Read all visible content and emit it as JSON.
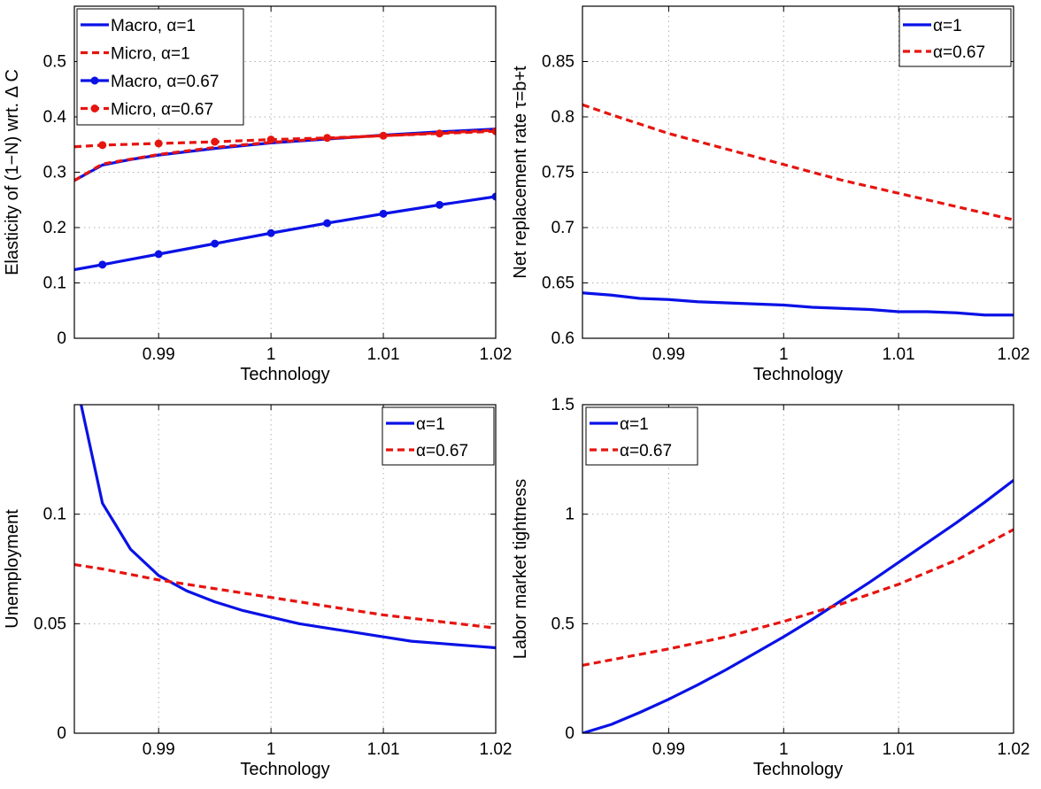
{
  "figure": {
    "colors": {
      "blue": "#0a12e6",
      "red": "#e6140f"
    }
  },
  "chart_data": [
    {
      "type": "line",
      "xlabel": "Technology",
      "ylabel": "Elasticity of (1−N) wrt. Δ C",
      "xlim": [
        0.9825,
        1.02
      ],
      "ylim": [
        0,
        0.6
      ],
      "xticks": [
        0.99,
        1,
        1.01,
        1.02
      ],
      "xtick_labels": [
        "0.99",
        "1",
        "1.01",
        "1.02"
      ],
      "yticks": [
        0,
        0.1,
        0.2,
        0.3,
        0.4,
        0.5
      ],
      "ytick_labels": [
        "0",
        "0.1",
        "0.2",
        "0.3",
        "0.4",
        "0.5"
      ],
      "grid": true,
      "legend_position": "top-left",
      "series": [
        {
          "name": "Macro, α=1",
          "color": "#0a12e6",
          "style": "solid",
          "marker": "none",
          "x": [
            0.9825,
            0.985,
            0.9875,
            0.99,
            0.995,
            1.0,
            1.005,
            1.01,
            1.015,
            1.02
          ],
          "y": [
            0.285,
            0.313,
            0.323,
            0.331,
            0.343,
            0.353,
            0.36,
            0.367,
            0.373,
            0.378
          ]
        },
        {
          "name": "Micro, α=1",
          "color": "#e6140f",
          "style": "dashed",
          "marker": "none",
          "x": [
            0.9825,
            0.985,
            0.99,
            0.995,
            1.0,
            1.005,
            1.01,
            1.015,
            1.02
          ],
          "y": [
            0.285,
            0.315,
            0.332,
            0.345,
            0.354,
            0.361,
            0.366,
            0.371,
            0.376
          ]
        },
        {
          "name": "Macro, α=0.67",
          "color": "#0a12e6",
          "style": "solid",
          "marker": "dot",
          "x": [
            0.9825,
            0.985,
            0.99,
            0.995,
            1.0,
            1.005,
            1.01,
            1.015,
            1.02
          ],
          "y": [
            0.124,
            0.133,
            0.152,
            0.171,
            0.19,
            0.208,
            0.225,
            0.241,
            0.256
          ]
        },
        {
          "name": "Micro, α=0.67",
          "color": "#e6140f",
          "style": "dashed",
          "marker": "dot",
          "x": [
            0.9825,
            0.985,
            0.99,
            0.995,
            1.0,
            1.005,
            1.01,
            1.015,
            1.02
          ],
          "y": [
            0.346,
            0.349,
            0.352,
            0.355,
            0.359,
            0.362,
            0.366,
            0.37,
            0.374
          ]
        }
      ]
    },
    {
      "type": "line",
      "xlabel": "Technology",
      "ylabel": "Net replacement rate τ=b+t",
      "xlim": [
        0.9825,
        1.02
      ],
      "ylim": [
        0.6,
        0.9
      ],
      "xticks": [
        0.99,
        1,
        1.01,
        1.02
      ],
      "xtick_labels": [
        "0.99",
        "1",
        "1.01",
        "1.02"
      ],
      "yticks": [
        0.6,
        0.65,
        0.7,
        0.75,
        0.8,
        0.85
      ],
      "ytick_labels": [
        "0.6",
        "0.65",
        "0.7",
        "0.75",
        "0.8",
        "0.85"
      ],
      "grid": true,
      "legend_position": "top-right",
      "series": [
        {
          "name": "α=1",
          "color": "#0a12e6",
          "style": "solid",
          "marker": "none",
          "x": [
            0.9825,
            0.985,
            0.9875,
            0.99,
            0.9925,
            0.995,
            0.9975,
            1.0,
            1.0025,
            1.005,
            1.0075,
            1.01,
            1.0125,
            1.015,
            1.0175,
            1.02
          ],
          "y": [
            0.641,
            0.639,
            0.636,
            0.635,
            0.633,
            0.632,
            0.631,
            0.63,
            0.628,
            0.627,
            0.626,
            0.624,
            0.624,
            0.623,
            0.621,
            0.621
          ]
        },
        {
          "name": "α=0.67",
          "color": "#e6140f",
          "style": "dashed",
          "marker": "none",
          "x": [
            0.9825,
            0.985,
            0.99,
            0.995,
            1.0,
            1.005,
            1.01,
            1.015,
            1.02
          ],
          "y": [
            0.811,
            0.802,
            0.785,
            0.771,
            0.757,
            0.743,
            0.731,
            0.719,
            0.707
          ]
        }
      ]
    },
    {
      "type": "line",
      "xlabel": "Technology",
      "ylabel": "Unemployment",
      "xlim": [
        0.9825,
        1.02
      ],
      "ylim": [
        0,
        0.15
      ],
      "xticks": [
        0.99,
        1,
        1.01,
        1.02
      ],
      "xtick_labels": [
        "0.99",
        "1",
        "1.01",
        "1.02"
      ],
      "yticks": [
        0,
        0.05,
        0.1
      ],
      "ytick_labels": [
        "0",
        "0.05",
        "0.1"
      ],
      "grid": true,
      "legend_position": "top-right",
      "series": [
        {
          "name": "α=1",
          "color": "#0a12e6",
          "style": "solid",
          "marker": "none",
          "x": [
            0.9831,
            0.985,
            0.9875,
            0.99,
            0.9925,
            0.995,
            0.9975,
            1.0,
            1.0025,
            1.005,
            1.0075,
            1.01,
            1.0125,
            1.015,
            1.0175,
            1.02
          ],
          "y": [
            0.15,
            0.105,
            0.084,
            0.072,
            0.065,
            0.06,
            0.056,
            0.053,
            0.05,
            0.048,
            0.046,
            0.044,
            0.042,
            0.041,
            0.04,
            0.039
          ]
        },
        {
          "name": "α=0.67",
          "color": "#e6140f",
          "style": "dashed",
          "marker": "none",
          "x": [
            0.9825,
            0.985,
            0.99,
            0.995,
            1.0,
            1.005,
            1.01,
            1.015,
            1.02
          ],
          "y": [
            0.077,
            0.075,
            0.07,
            0.066,
            0.062,
            0.058,
            0.054,
            0.051,
            0.048
          ]
        }
      ]
    },
    {
      "type": "line",
      "xlabel": "Technology",
      "ylabel": "Labor market tightness",
      "xlim": [
        0.9825,
        1.02
      ],
      "ylim": [
        0,
        1.5
      ],
      "xticks": [
        0.99,
        1,
        1.01,
        1.02
      ],
      "xtick_labels": [
        "0.99",
        "1",
        "1.01",
        "1.02"
      ],
      "yticks": [
        0,
        0.5,
        1,
        1.5
      ],
      "ytick_labels": [
        "0",
        "0.5",
        "1",
        "1.5"
      ],
      "grid": true,
      "legend_position": "top-left",
      "series": [
        {
          "name": "α=1",
          "color": "#0a12e6",
          "style": "solid",
          "marker": "none",
          "x": [
            0.9825,
            0.985,
            0.9875,
            0.99,
            0.9925,
            0.995,
            0.9975,
            1.0,
            1.0025,
            1.005,
            1.0075,
            1.01,
            1.0125,
            1.015,
            1.0175,
            1.02
          ],
          "y": [
            0.0,
            0.04,
            0.095,
            0.155,
            0.22,
            0.29,
            0.365,
            0.44,
            0.52,
            0.605,
            0.69,
            0.78,
            0.87,
            0.96,
            1.055,
            1.155
          ]
        },
        {
          "name": "α=0.67",
          "color": "#e6140f",
          "style": "dashed",
          "marker": "none",
          "x": [
            0.9825,
            0.985,
            0.99,
            0.995,
            1.0,
            1.005,
            1.01,
            1.015,
            1.02
          ],
          "y": [
            0.31,
            0.335,
            0.385,
            0.44,
            0.51,
            0.59,
            0.68,
            0.79,
            0.93
          ]
        }
      ]
    }
  ]
}
